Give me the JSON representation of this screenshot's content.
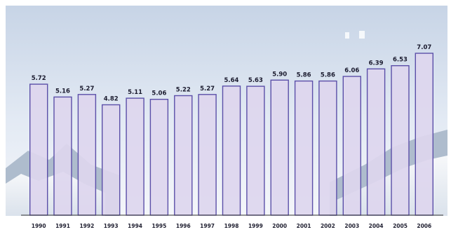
{
  "chart_data": {
    "type": "bar",
    "title": "",
    "xlabel": "",
    "ylabel": "",
    "categories": [
      "1990",
      "1991",
      "1992",
      "1993",
      "1994",
      "1995",
      "1996",
      "1997",
      "1998",
      "1999",
      "2000",
      "2001",
      "2002",
      "2003",
      "2004",
      "2005",
      "2006"
    ],
    "values": [
      5.72,
      5.16,
      5.27,
      4.82,
      5.11,
      5.06,
      5.22,
      5.27,
      5.64,
      5.63,
      5.9,
      5.86,
      5.86,
      6.06,
      6.39,
      6.53,
      7.07
    ],
    "value_labels": [
      "5.72",
      "5.16",
      "5.27",
      "4.82",
      "5.11",
      "5.06",
      "5.22",
      "5.27",
      "5.64",
      "5.63",
      "5.90",
      "5.86",
      "5.86",
      "6.06",
      "6.39",
      "6.53",
      "7.07"
    ],
    "ylim": [
      0,
      7.5
    ],
    "grid": false,
    "legend": "none",
    "colors": {
      "bar_fill": "#ddd6ee",
      "bar_stroke": "#5b4fa8",
      "sky_top": "#c7d4e6",
      "sky_mid": "#e3eaf4",
      "mountain": "#aebccd"
    }
  }
}
